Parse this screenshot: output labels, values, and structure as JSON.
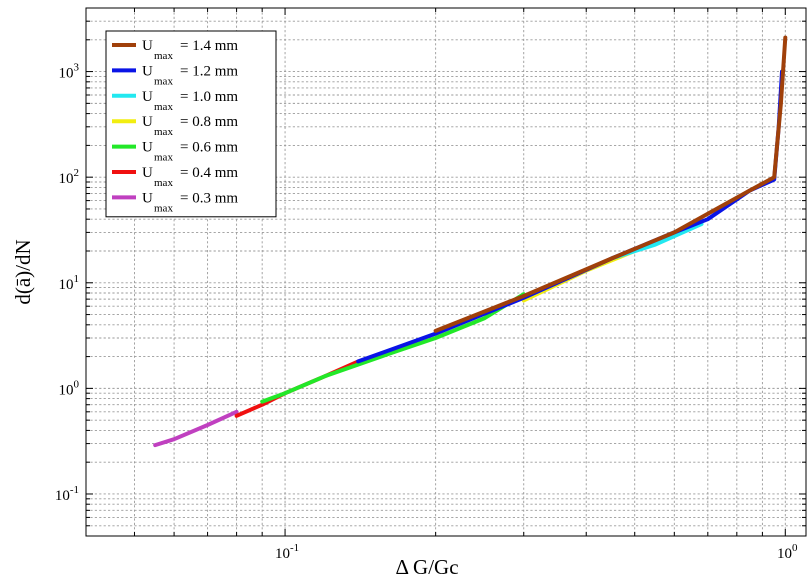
{
  "chart_data": {
    "type": "line",
    "xlabel": "Δ G/Gc",
    "ylabel": "d(ā)/dN",
    "x_scale": "log",
    "y_scale": "log",
    "xlim": [
      0.04,
      1.1
    ],
    "ylim": [
      0.04,
      4000
    ],
    "x_ticks": [
      {
        "value": 0.1,
        "base": "10",
        "exp": "-1"
      },
      {
        "value": 1,
        "base": "10",
        "exp": "0"
      }
    ],
    "y_ticks": [
      {
        "value": 0.1,
        "base": "10",
        "exp": "-1"
      },
      {
        "value": 1,
        "base": "10",
        "exp": "0"
      },
      {
        "value": 10,
        "base": "10",
        "exp": "1"
      },
      {
        "value": 100,
        "base": "10",
        "exp": "2"
      },
      {
        "value": 1000,
        "base": "10",
        "exp": "3"
      }
    ],
    "grid": true,
    "legend_position": "top-left",
    "series": [
      {
        "name": "U_max = 1.4 mm",
        "legend_main": "U",
        "legend_sub": "max",
        "legend_value": "= 1.4 mm",
        "color": "#a0400a",
        "x": [
          0.2,
          0.3,
          0.45,
          0.6,
          0.7,
          0.85,
          0.95,
          0.98,
          1.0
        ],
        "y": [
          3.5,
          7.5,
          17,
          30,
          45,
          75,
          100,
          500,
          2100
        ]
      },
      {
        "name": "U_max = 1.2 mm",
        "legend_main": "U",
        "legend_sub": "max",
        "legend_value": "= 1.2 mm",
        "color": "#0a14e6",
        "x": [
          0.14,
          0.2,
          0.3,
          0.45,
          0.6,
          0.7,
          0.85,
          0.95,
          0.97,
          0.985
        ],
        "y": [
          1.8,
          3.3,
          7.2,
          17,
          30,
          40,
          75,
          95,
          300,
          1000
        ]
      },
      {
        "name": "U_max = 1.0 mm",
        "legend_main": "U",
        "legend_sub": "max",
        "legend_value": "= 1.0 mm",
        "color": "#22e8f0",
        "x": [
          0.45,
          0.55,
          0.68
        ],
        "y": [
          17,
          23,
          36
        ]
      },
      {
        "name": "U_max = 0.8 mm",
        "legend_main": "U",
        "legend_sub": "max",
        "legend_value": "= 0.8 mm",
        "color": "#f2ee10",
        "x": [
          0.3,
          0.4,
          0.5
        ],
        "y": [
          6.8,
          13,
          20
        ]
      },
      {
        "name": "U_max = 0.6 mm",
        "legend_main": "U",
        "legend_sub": "max",
        "legend_value": "= 0.6 mm",
        "color": "#22e828",
        "x": [
          0.09,
          0.1,
          0.12,
          0.16,
          0.2,
          0.25,
          0.3
        ],
        "y": [
          0.75,
          0.9,
          1.3,
          2.1,
          3.0,
          4.6,
          7.8
        ]
      },
      {
        "name": "U_max = 0.4 mm",
        "legend_main": "U",
        "legend_sub": "max",
        "legend_value": "= 0.4 mm",
        "color": "#f01010",
        "x": [
          0.08,
          0.09,
          0.1,
          0.12,
          0.14
        ],
        "y": [
          0.55,
          0.7,
          0.9,
          1.3,
          1.8
        ]
      },
      {
        "name": "U_max = 0.3 mm",
        "legend_main": "U",
        "legend_sub": "max",
        "legend_value": "= 0.3 mm",
        "color": "#c040c0",
        "x": [
          0.055,
          0.06,
          0.07,
          0.08
        ],
        "y": [
          0.29,
          0.33,
          0.45,
          0.6
        ]
      }
    ]
  }
}
